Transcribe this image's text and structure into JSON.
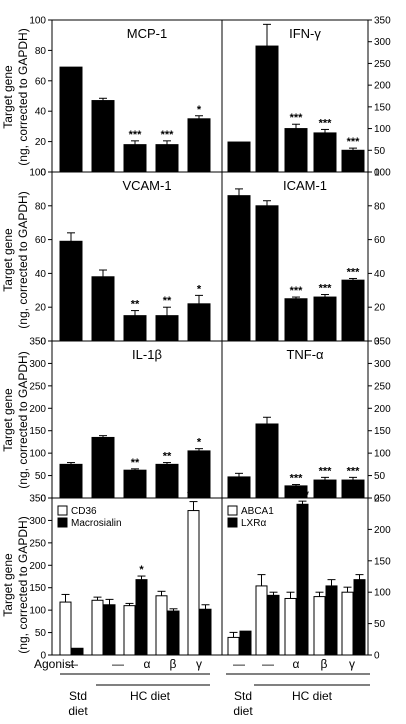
{
  "y_axis_label_line1": "Target gene",
  "y_axis_label_line2": "(ng, corrected to GAPDH)",
  "chart_data": [
    {
      "type": "bar",
      "title": "MCP-1",
      "ylim": [
        0,
        100
      ],
      "yticks": [
        0,
        20,
        40,
        60,
        80,
        100
      ],
      "axis_side": "left",
      "series": [
        {
          "values": [
            69,
            47,
            18,
            18,
            35
          ],
          "errors": [
            0,
            1.5,
            2.5,
            2.5,
            2
          ],
          "significance": [
            "",
            "",
            "***",
            "***",
            "*"
          ]
        }
      ]
    },
    {
      "type": "bar",
      "title": "IFN-γ",
      "ylim": [
        0,
        350
      ],
      "yticks": [
        0,
        50,
        100,
        150,
        200,
        250,
        300,
        350
      ],
      "axis_side": "right",
      "series": [
        {
          "values": [
            69,
            290,
            100,
            90,
            50
          ],
          "errors": [
            0,
            50,
            10,
            8,
            5
          ],
          "significance": [
            "",
            "",
            "***",
            "***",
            "***"
          ]
        }
      ]
    },
    {
      "type": "bar",
      "title": "VCAM-1",
      "ylim": [
        0,
        100
      ],
      "yticks": [
        0,
        20,
        40,
        60,
        80,
        100
      ],
      "axis_side": "left",
      "series": [
        {
          "values": [
            59,
            38,
            15,
            15,
            22
          ],
          "errors": [
            5,
            4,
            3,
            5,
            5
          ],
          "significance": [
            "",
            "",
            "**",
            "**",
            "*"
          ]
        }
      ]
    },
    {
      "type": "bar",
      "title": "ICAM-1",
      "ylim": [
        0,
        100
      ],
      "yticks": [
        0,
        20,
        40,
        60,
        80,
        100
      ],
      "axis_side": "right",
      "series": [
        {
          "values": [
            86,
            80,
            25,
            26,
            36
          ],
          "errors": [
            4,
            3,
            1,
            1.5,
            1
          ],
          "significance": [
            "",
            "",
            "***",
            "***",
            "***"
          ]
        }
      ]
    },
    {
      "type": "bar",
      "title": "IL-1β",
      "ylim": [
        0,
        350
      ],
      "yticks": [
        0,
        50,
        100,
        150,
        200,
        250,
        300,
        350
      ],
      "axis_side": "left",
      "series": [
        {
          "values": [
            75,
            135,
            62,
            75,
            105
          ],
          "errors": [
            4,
            4,
            3,
            4,
            5
          ],
          "significance": [
            "",
            "",
            "**",
            "**",
            "*"
          ]
        }
      ]
    },
    {
      "type": "bar",
      "title": "TNF-α",
      "ylim": [
        0,
        350
      ],
      "yticks": [
        0,
        50,
        100,
        150,
        200,
        250,
        300,
        350
      ],
      "axis_side": "right",
      "series": [
        {
          "values": [
            47,
            165,
            27,
            40,
            40
          ],
          "errors": [
            8,
            15,
            3,
            6,
            6
          ],
          "significance": [
            "",
            "",
            "***",
            "***",
            "***"
          ]
        }
      ]
    },
    {
      "type": "bar",
      "title": "",
      "ylim": [
        0,
        350
      ],
      "yticks": [
        0,
        50,
        100,
        150,
        200,
        250,
        300,
        350
      ],
      "axis_side": "left",
      "legend": [
        "CD36",
        "Macrosialin"
      ],
      "series": [
        {
          "name": "CD36",
          "color": "#ffffff",
          "values": [
            118,
            122,
            110,
            132,
            322
          ],
          "errors": [
            17,
            7,
            5,
            10,
            20
          ],
          "significance": [
            "",
            "",
            "",
            "",
            "***"
          ]
        },
        {
          "name": "Macrosialin",
          "color": "#000000",
          "values": [
            15,
            112,
            168,
            98,
            102
          ],
          "errors": [
            0,
            12,
            8,
            5,
            10
          ],
          "significance": [
            "",
            "",
            "*",
            "",
            ""
          ]
        }
      ]
    },
    {
      "type": "bar",
      "title": "",
      "ylim": [
        0,
        250
      ],
      "yticks": [
        0,
        50,
        100,
        150,
        200,
        250
      ],
      "axis_side": "right",
      "legend": [
        "ABCA1",
        "LXRα"
      ],
      "series": [
        {
          "name": "ABCA1",
          "color": "#ffffff",
          "values": [
            28,
            110,
            90,
            93,
            100
          ],
          "errors": [
            8,
            18,
            10,
            7,
            8
          ],
          "significance": [
            "",
            "",
            "",
            "",
            ""
          ]
        },
        {
          "name": "LXRα",
          "color": "#000000",
          "values": [
            38,
            95,
            240,
            110,
            120
          ],
          "errors": [
            0,
            5,
            5,
            10,
            8
          ],
          "significance": [
            "",
            "",
            "***",
            "",
            ""
          ]
        }
      ]
    }
  ],
  "agonist": {
    "label": "Agonist",
    "values": [
      "—",
      "—",
      "α",
      "β",
      "γ"
    ]
  },
  "diet_groups": [
    {
      "line1": "Std",
      "line2": "diet"
    },
    {
      "line1": "HC diet",
      "line2": ""
    }
  ]
}
